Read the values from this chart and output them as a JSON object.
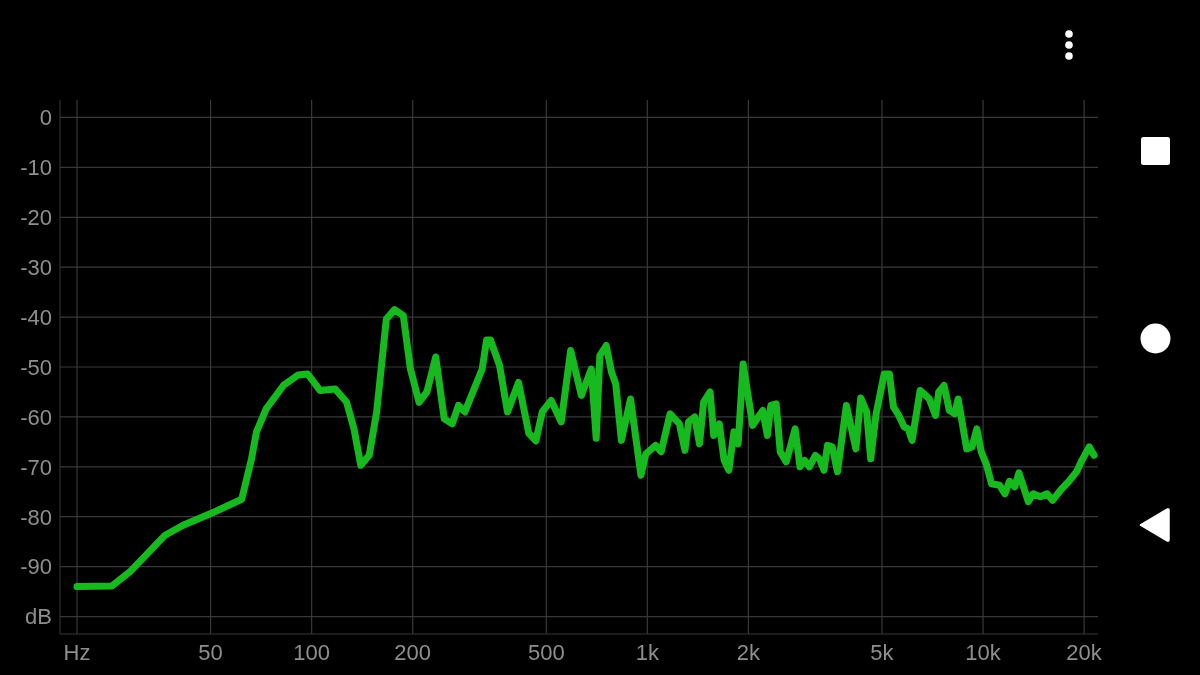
{
  "chart_data": {
    "type": "line",
    "x": [
      20,
      25.4,
      28.7,
      36.6,
      41.4,
      51.5,
      61.9,
      66.2,
      68.5,
      73.2,
      82.4,
      91.1,
      97.3,
      105.9,
      117.5,
      127,
      133.7,
      140.1,
      148.4,
      156.2,
      166.9,
      176.6,
      187.5,
      196.9,
      208.9,
      220.5,
      234.2,
      248.4,
      262.3,
      273.8,
      286,
      322.1,
      332,
      341,
      362.9,
      383.1,
      413.3,
      443.5,
      465.6,
      486.3,
      517,
      554,
      591,
      636,
      681,
      704,
      722,
      754,
      782,
      805,
      837,
      891,
      957,
      990,
      1058,
      1099,
      1169,
      1246,
      1294,
      1327,
      1384,
      1430,
      1472,
      1538,
      1577,
      1638,
      1693,
      1749,
      1811,
      1864,
      1929,
      2060,
      2207,
      2277,
      2333,
      2420,
      2488,
      2593,
      2755,
      2849,
      2939,
      3038,
      3166,
      3255,
      3358,
      3441,
      3553,
      3684,
      3916,
      4179,
      4321,
      4500,
      4627,
      4802,
      5075,
      5261,
      5408,
      5610,
      5820,
      5981,
      6147,
      6494,
      6920,
      7218,
      7378,
      7654,
      7935,
      8232,
      8428,
      8938,
      9272,
      9582,
      9880,
      10250,
      10600,
      11200,
      11620,
      11990,
      12430,
      12790,
      13640,
      14100,
      14820,
      15510,
      16100,
      17160,
      17970,
      18990,
      19700,
      20710,
      21410
    ],
    "values": [
      -94.0,
      -93.9,
      -91.1,
      -83.7,
      -81.7,
      -79,
      -76.5,
      -68.4,
      -63,
      -58.4,
      -53.7,
      -51.6,
      -51.4,
      -54.7,
      -54.4,
      -57,
      -62.4,
      -69.7,
      -67.7,
      -59,
      -40.4,
      -38.5,
      -39.7,
      -50.4,
      -57.1,
      -55,
      -48,
      -60.4,
      -61.4,
      -57.7,
      -59,
      -50.4,
      -44.6,
      -44.6,
      -49.7,
      -59,
      -53.1,
      -63.3,
      -64.8,
      -59,
      -56.7,
      -61,
      -46.7,
      -55.7,
      -50.4,
      -64.3,
      -47.7,
      -45.7,
      -51,
      -53.4,
      -64.7,
      -56.4,
      -71.7,
      -67.4,
      -65.7,
      -67,
      -59.4,
      -61.4,
      -66.7,
      -61,
      -60,
      -65.4,
      -57,
      -55,
      -63.7,
      -61.4,
      -68.7,
      -70.7,
      -63,
      -65.4,
      -49.4,
      -61.7,
      -58.7,
      -63.7,
      -57.7,
      -57.4,
      -67,
      -69,
      -62.4,
      -70,
      -68.7,
      -70,
      -67.7,
      -68.4,
      -70.7,
      -65.7,
      -66,
      -71,
      -57.7,
      -66.4,
      -56.2,
      -59,
      -68.4,
      -59.4,
      -51.4,
      -51.4,
      -58,
      -59.7,
      -62,
      -62.4,
      -64.7,
      -54.7,
      -56.4,
      -59.7,
      -55,
      -53.7,
      -58.7,
      -59.4,
      -56.4,
      -66.4,
      -66,
      -62.4,
      -67,
      -69.7,
      -73.4,
      -73.7,
      -75.4,
      -72.9,
      -74,
      -71.2,
      -77,
      -75.4,
      -76,
      -75.4,
      -76.7,
      -74.4,
      -73,
      -71,
      -68.7,
      -66,
      -67.7
    ],
    "color": "#16b91e",
    "log": "x",
    "xlim": [
      17.8,
      22000
    ],
    "xticks": [
      {
        "value": 20,
        "label": "Hz"
      },
      50,
      100,
      200,
      500,
      {
        "value": 1000,
        "label": "1k"
      },
      {
        "value": 2000,
        "label": "2k"
      },
      {
        "value": 5000,
        "label": "5k"
      },
      {
        "value": 10000,
        "label": "10k"
      },
      {
        "value": 20000,
        "label": "20k"
      }
    ],
    "ylim": [
      -103.5,
      3.5
    ],
    "yticks": [
      0,
      -10,
      -20,
      -30,
      -40,
      -50,
      -60,
      -70,
      -80,
      -90,
      {
        "value": -100,
        "label": "dB"
      }
    ],
    "grid": true
  }
}
